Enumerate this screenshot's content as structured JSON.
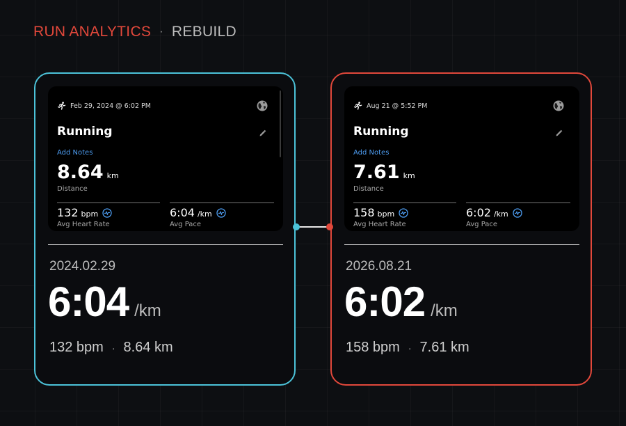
{
  "header": {
    "title": "RUN ANALYTICS",
    "separator": "·",
    "subtitle": "REBUILD"
  },
  "colors": {
    "left_accent": "#4cc3d9",
    "right_accent": "#e2483b",
    "link_blue": "#4d9cf0"
  },
  "cards": [
    {
      "accent": "left",
      "screenshot": {
        "icons": [
          "running-person-icon",
          "globe-icon",
          "pencil-icon",
          "heart-rate-icon",
          "pace-icon"
        ],
        "date_time": "Feb 29, 2024 @ 6:02 PM",
        "activity": "Running",
        "add_notes": "Add Notes",
        "distance_value": "8.64",
        "distance_unit": "km",
        "distance_label": "Distance",
        "heart_rate_value": "132",
        "heart_rate_unit": "bpm",
        "heart_rate_label": "Avg Heart Rate",
        "pace_value": "6:04",
        "pace_unit": "/km",
        "pace_label": "Avg Pace"
      },
      "date": "2024.02.29",
      "pace": "6:04",
      "pace_unit": "/km",
      "summary_hr": "132 bpm",
      "summary_sep": "·",
      "summary_distance": "8.64 km"
    },
    {
      "accent": "right",
      "screenshot": {
        "icons": [
          "running-person-icon",
          "globe-icon",
          "pencil-icon",
          "heart-rate-icon",
          "pace-icon"
        ],
        "date_time": "Aug 21 @ 5:52 PM",
        "activity": "Running",
        "add_notes": "Add Notes",
        "distance_value": "7.61",
        "distance_unit": "km",
        "distance_label": "Distance",
        "heart_rate_value": "158",
        "heart_rate_unit": "bpm",
        "heart_rate_label": "Avg Heart Rate",
        "pace_value": "6:02",
        "pace_unit": "/km",
        "pace_label": "Avg Pace"
      },
      "date": "2026.08.21",
      "pace": "6:02",
      "pace_unit": "/km",
      "summary_hr": "158 bpm",
      "summary_sep": "·",
      "summary_distance": "7.61 km"
    }
  ]
}
